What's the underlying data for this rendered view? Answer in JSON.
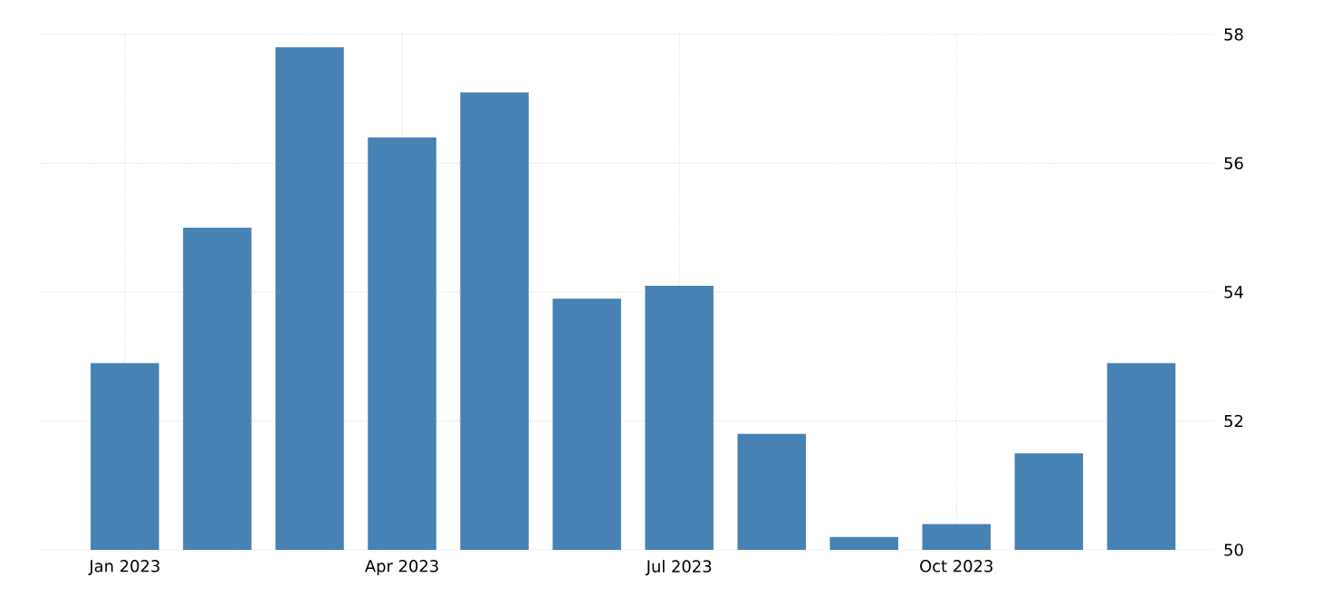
{
  "chart_data": {
    "type": "bar",
    "categories": [
      "Jan 2023",
      null,
      null,
      "Apr 2023",
      null,
      null,
      "Jul 2023",
      null,
      null,
      "Oct 2023",
      null,
      null
    ],
    "values": [
      52.9,
      55.0,
      57.8,
      56.4,
      57.1,
      53.9,
      54.1,
      51.8,
      50.2,
      50.4,
      51.5,
      52.9
    ],
    "color": "#4682b4",
    "ylim": [
      50,
      58
    ],
    "yticks": [
      50,
      52,
      54,
      56,
      58
    ],
    "grid": true
  }
}
